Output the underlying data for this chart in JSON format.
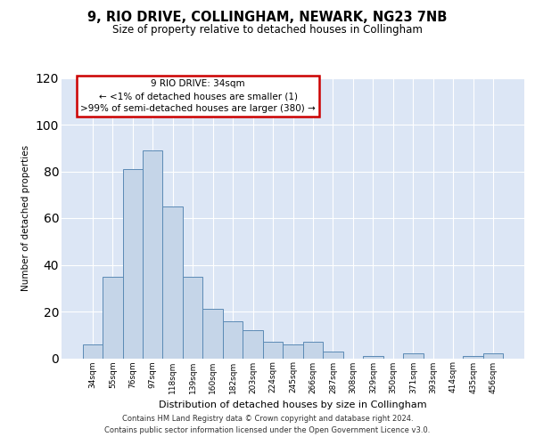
{
  "title": "9, RIO DRIVE, COLLINGHAM, NEWARK, NG23 7NB",
  "subtitle": "Size of property relative to detached houses in Collingham",
  "xlabel": "Distribution of detached houses by size in Collingham",
  "ylabel": "Number of detached properties",
  "categories": [
    "34sqm",
    "55sqm",
    "76sqm",
    "97sqm",
    "118sqm",
    "139sqm",
    "160sqm",
    "182sqm",
    "203sqm",
    "224sqm",
    "245sqm",
    "266sqm",
    "287sqm",
    "308sqm",
    "329sqm",
    "350sqm",
    "371sqm",
    "393sqm",
    "414sqm",
    "435sqm",
    "456sqm"
  ],
  "values": [
    6,
    35,
    81,
    89,
    65,
    35,
    21,
    16,
    12,
    7,
    6,
    7,
    3,
    0,
    1,
    0,
    2,
    0,
    0,
    1,
    2
  ],
  "bar_color": "#c5d5e8",
  "bar_edge_color": "#5b8ab5",
  "ylim": [
    0,
    120
  ],
  "yticks": [
    0,
    20,
    40,
    60,
    80,
    100,
    120
  ],
  "annotation_line1": "9 RIO DRIVE: 34sqm",
  "annotation_line2": "← <1% of detached houses are smaller (1)",
  "annotation_line3": ">99% of semi-detached houses are larger (380) →",
  "annotation_box_edge_color": "#cc0000",
  "background_color": "#dce6f5",
  "footer_line1": "Contains HM Land Registry data © Crown copyright and database right 2024.",
  "footer_line2": "Contains public sector information licensed under the Open Government Licence v3.0."
}
